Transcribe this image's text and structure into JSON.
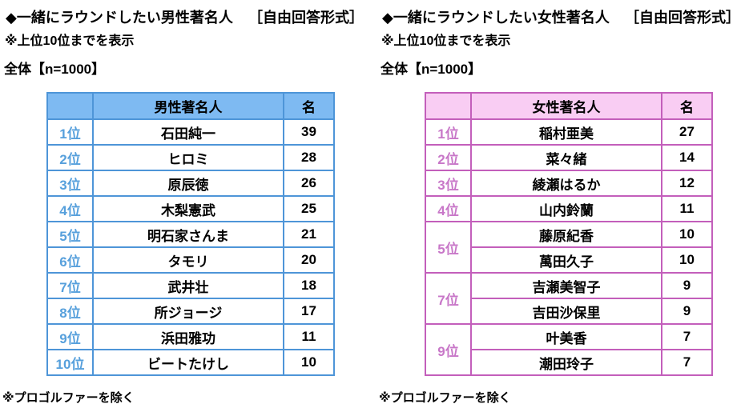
{
  "colors": {
    "male": {
      "border": "#4E95D8",
      "header-bg": "#7EBAF2",
      "rank-text": "#57A0DC",
      "sub-divider": "#CDE4F7"
    },
    "female": {
      "border": "#C35FBB",
      "header-bg": "#F9CDF3",
      "rank-text": "#C877C8",
      "sub-divider": "#F3C9EE"
    }
  },
  "chart_data": [
    {
      "type": "table",
      "title": "◆一緒にラウンドしたい男性著名人［自由回答形式］",
      "subtitle": "※上位10位までを表示",
      "base": "全体【n=1000】",
      "columns": [
        "順位",
        "男性著名人",
        "名"
      ],
      "rows": [
        [
          "1位",
          "石田純一",
          39
        ],
        [
          "2位",
          "ヒロミ",
          28
        ],
        [
          "3位",
          "原辰徳",
          26
        ],
        [
          "4位",
          "木梨憲武",
          25
        ],
        [
          "5位",
          "明石家さんま",
          21
        ],
        [
          "6位",
          "タモリ",
          20
        ],
        [
          "7位",
          "武井壮",
          18
        ],
        [
          "8位",
          "所ジョージ",
          17
        ],
        [
          "9位",
          "浜田雅功",
          11
        ],
        [
          "10位",
          "ビートたけし",
          10
        ]
      ],
      "footnote": "※プロゴルファーを除く"
    },
    {
      "type": "table",
      "title": "◆一緒にラウンドしたい女性著名人［自由回答形式］",
      "subtitle": "※上位10位までを表示",
      "base": "全体【n=1000】",
      "columns": [
        "順位",
        "女性著名人",
        "名"
      ],
      "rows": [
        [
          "1位",
          "稲村亜美",
          27
        ],
        [
          "2位",
          "菜々緒",
          14
        ],
        [
          "3位",
          "綾瀬はるか",
          12
        ],
        [
          "4位",
          "山内鈴蘭",
          11
        ],
        [
          "5位",
          "藤原紀香",
          10
        ],
        [
          "5位",
          "萬田久子",
          10
        ],
        [
          "7位",
          "吉瀬美智子",
          9
        ],
        [
          "7位",
          "吉田沙保里",
          9
        ],
        [
          "9位",
          "叶美香",
          7
        ],
        [
          "9位",
          "潮田玲子",
          7
        ]
      ],
      "footnote": "※プロゴルファーを除く"
    }
  ],
  "panels": [
    {
      "title": "◆一緒にラウンドしたい男性著名人",
      "format_note": "［自由回答形式］",
      "display_note": "※上位10位までを表示",
      "base_label": "全体【n=1000】",
      "footnote": "※プロゴルファーを除く",
      "table": {
        "header": {
          "rank": "",
          "name": "男性著名人",
          "count": "名"
        },
        "rows": [
          {
            "rank": "1位",
            "name": "石田純一",
            "count": "39"
          },
          {
            "rank": "2位",
            "name": "ヒロミ",
            "count": "28"
          },
          {
            "rank": "3位",
            "name": "原辰徳",
            "count": "26"
          },
          {
            "rank": "4位",
            "name": "木梨憲武",
            "count": "25"
          },
          {
            "rank": "5位",
            "name": "明石家さんま",
            "count": "21"
          },
          {
            "rank": "6位",
            "name": "タモリ",
            "count": "20"
          },
          {
            "rank": "7位",
            "name": "武井壮",
            "count": "18"
          },
          {
            "rank": "8位",
            "name": "所ジョージ",
            "count": "17"
          },
          {
            "rank": "9位",
            "name": "浜田雅功",
            "count": "11"
          },
          {
            "rank": "10位",
            "name": "ビートたけし",
            "count": "10"
          }
        ]
      }
    },
    {
      "title": "◆一緒にラウンドしたい女性著名人",
      "format_note": "［自由回答形式］",
      "display_note": "※上位10位までを表示",
      "base_label": "全体【n=1000】",
      "footnote": "※プロゴルファーを除く",
      "table": {
        "header": {
          "rank": "",
          "name": "女性著名人",
          "count": "名"
        },
        "rows": [
          {
            "rank": "1位",
            "name": "稲村亜美",
            "count": "27"
          },
          {
            "rank": "2位",
            "name": "菜々緒",
            "count": "14"
          },
          {
            "rank": "3位",
            "name": "綾瀬はるか",
            "count": "12"
          },
          {
            "rank": "4位",
            "name": "山内鈴蘭",
            "count": "11"
          },
          {
            "rank": "5位",
            "name": "藤原紀香",
            "count": "10"
          },
          {
            "rank": "",
            "name": "萬田久子",
            "count": "10"
          },
          {
            "rank": "7位",
            "name": "吉瀬美智子",
            "count": "9"
          },
          {
            "rank": "",
            "name": "吉田沙保里",
            "count": "9"
          },
          {
            "rank": "9位",
            "name": "叶美香",
            "count": "7"
          },
          {
            "rank": "",
            "name": "潮田玲子",
            "count": "7"
          }
        ]
      }
    }
  ]
}
